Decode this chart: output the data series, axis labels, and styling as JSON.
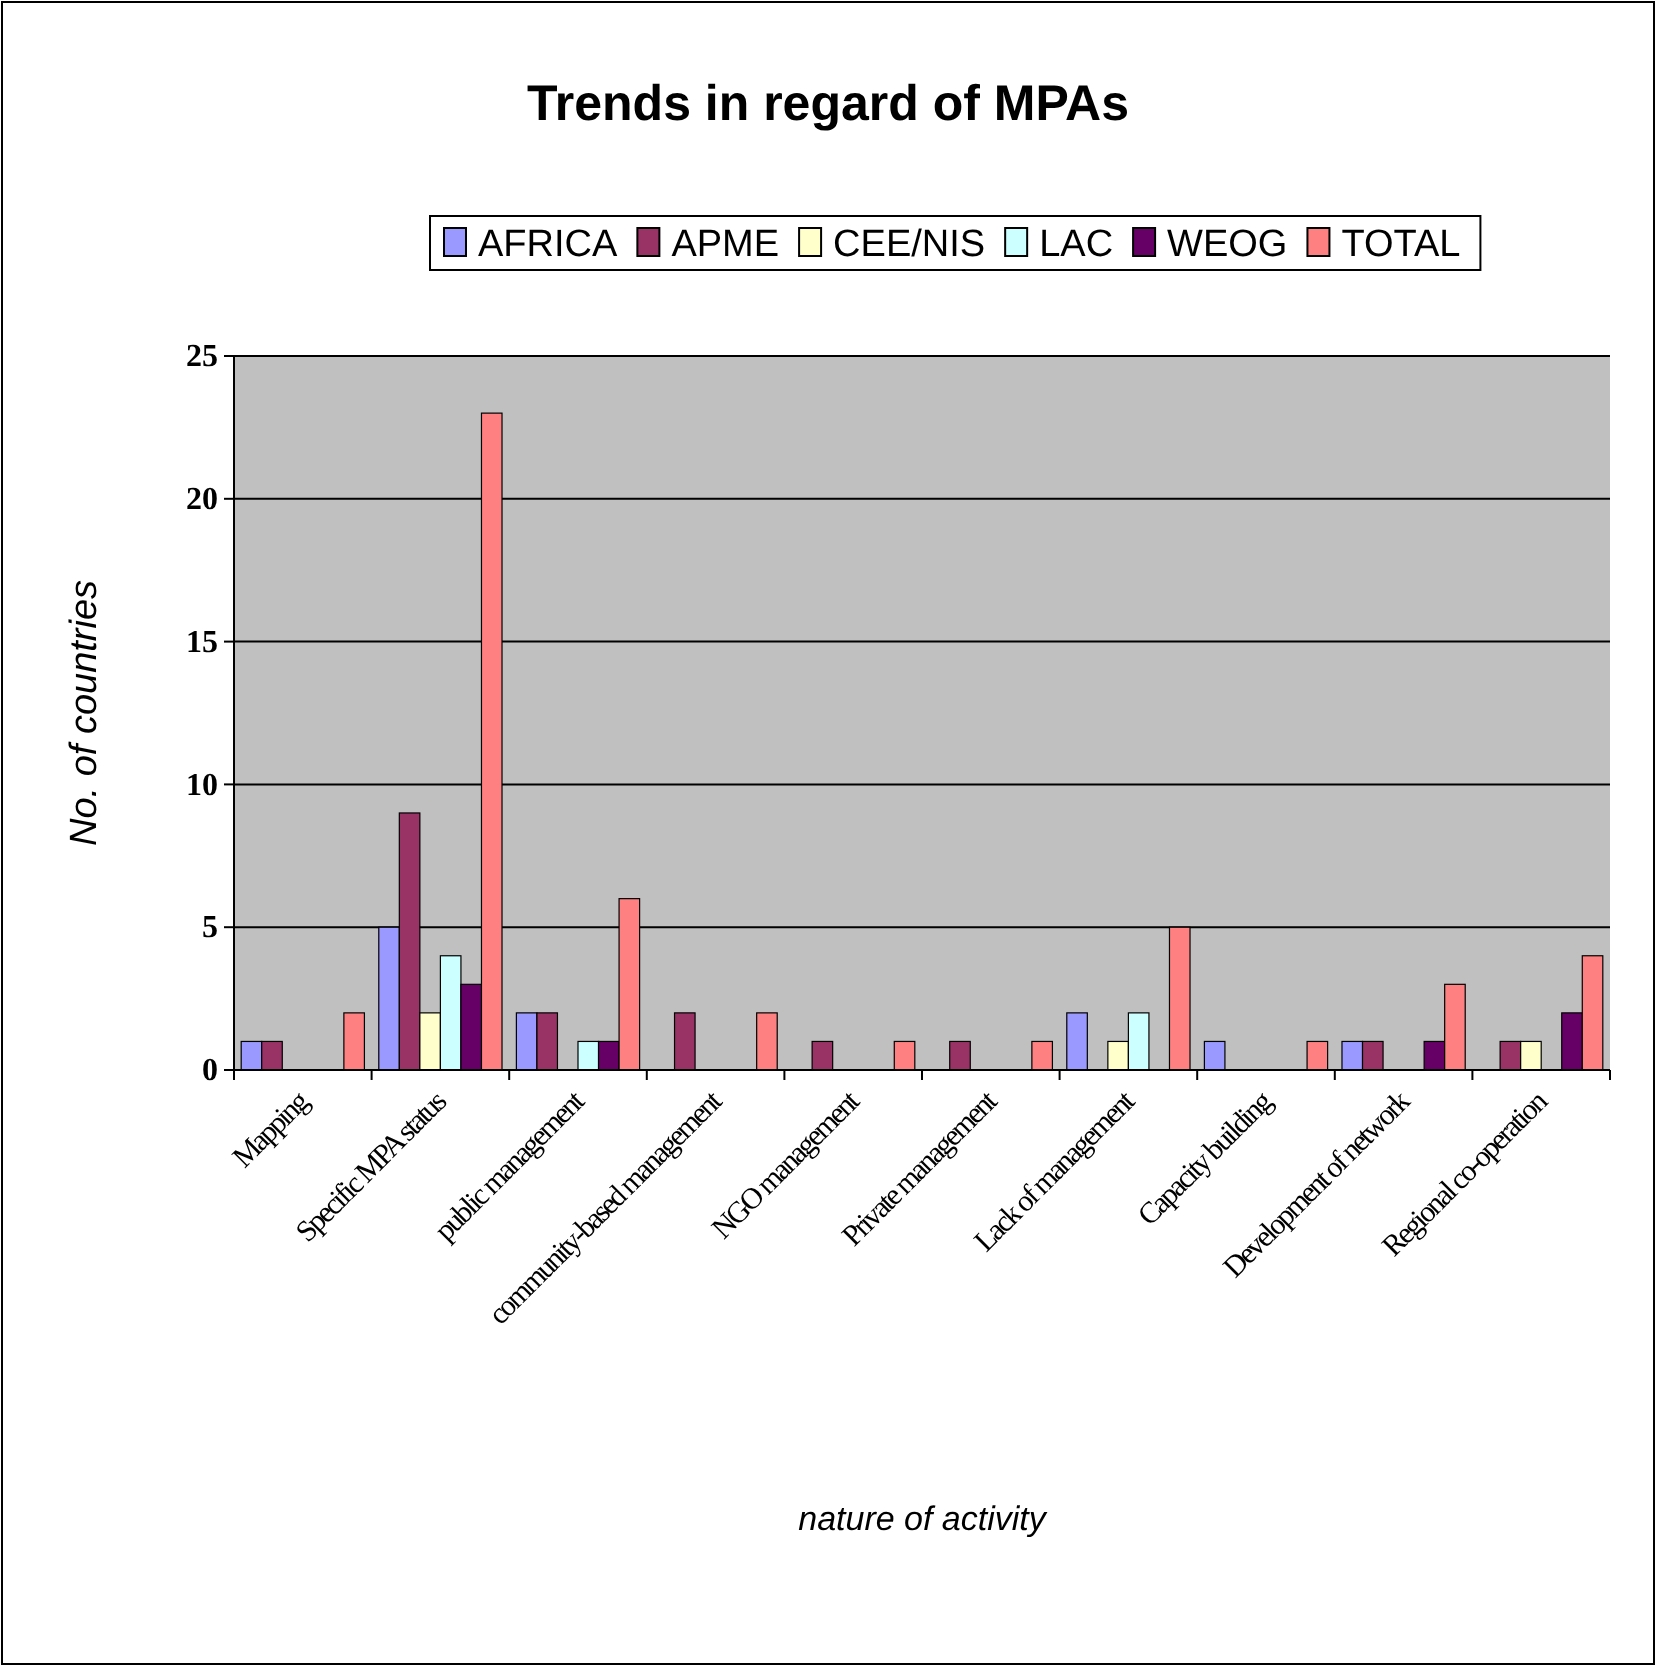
{
  "chart_data": {
    "type": "bar",
    "title": "Trends in regard of MPAs",
    "xlabel": "nature of activity",
    "ylabel": "No. of countries",
    "categories": [
      "Mapping",
      "Specific MPA status",
      "public management",
      "community-based management",
      "NGO management",
      "Private management",
      "Lack of management",
      "Capacity building",
      "Development of network",
      "Regional co-operation"
    ],
    "series": [
      {
        "name": "AFRICA",
        "color": "#9999ff",
        "values": [
          1,
          5,
          2,
          0,
          0,
          0,
          2,
          1,
          1,
          0
        ]
      },
      {
        "name": "APME",
        "color": "#993366",
        "values": [
          1,
          9,
          2,
          2,
          1,
          1,
          0,
          0,
          1,
          1
        ]
      },
      {
        "name": "CEE/NIS",
        "color": "#ffffcc",
        "values": [
          0,
          2,
          0,
          0,
          0,
          0,
          1,
          0,
          0,
          1
        ]
      },
      {
        "name": "LAC",
        "color": "#ccffff",
        "values": [
          0,
          4,
          1,
          0,
          0,
          0,
          2,
          0,
          0,
          0
        ]
      },
      {
        "name": "WEOG",
        "color": "#660066",
        "values": [
          0,
          3,
          1,
          0,
          0,
          0,
          0,
          0,
          1,
          2
        ]
      },
      {
        "name": "TOTAL",
        "color": "#ff8080",
        "values": [
          2,
          23,
          6,
          2,
          1,
          1,
          5,
          1,
          3,
          4
        ]
      }
    ],
    "ylim": [
      0,
      25
    ],
    "yticks": [
      0,
      5,
      10,
      15,
      20,
      25
    ],
    "grid": "y",
    "legend": "top"
  }
}
